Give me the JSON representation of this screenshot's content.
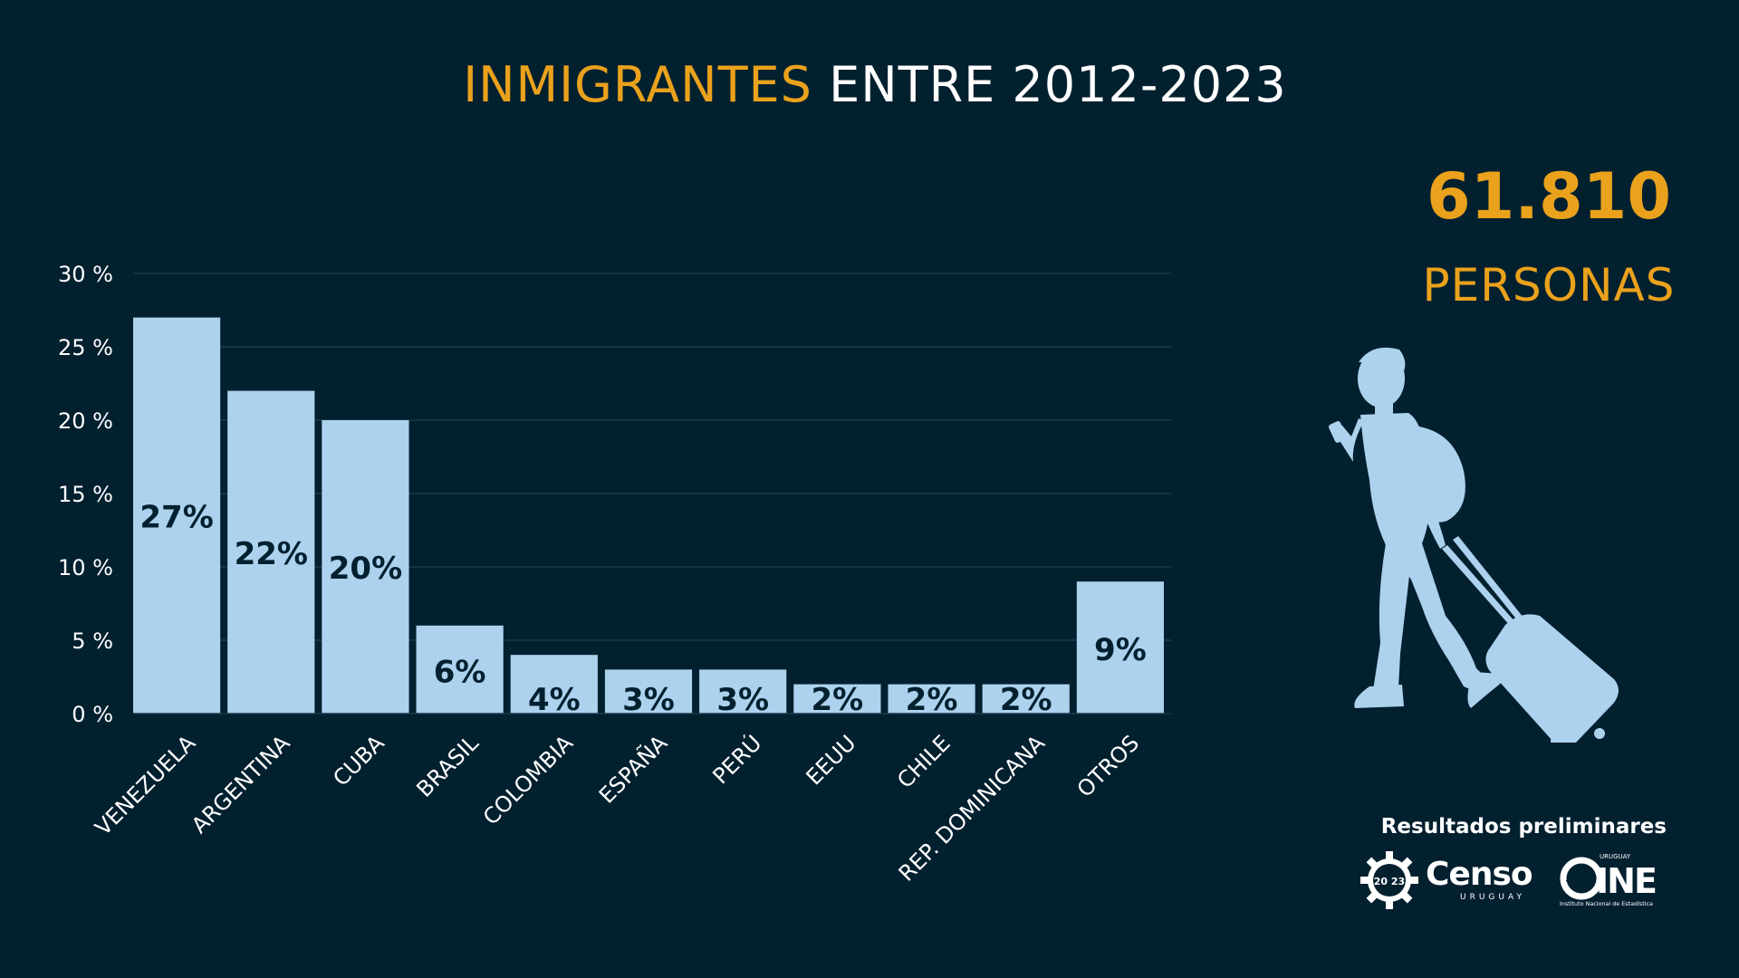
{
  "title": {
    "highlight": "INMIGRANTES",
    "rest": " ENTRE 2012-2023"
  },
  "total": {
    "number": "61.810",
    "unit": "PERSONAS"
  },
  "footer": {
    "label": "Resultados preliminares",
    "censo_badge": "20 23",
    "censo_word": "Censo",
    "censo_sub": "URUGUAY",
    "ine_top": "URUGUAY",
    "ine_word": "INE",
    "ine_sub": "Instituto Nacional de Estadística"
  },
  "colors": {
    "background": "#03202f",
    "accent": "#eaa21c",
    "bar": "#acd2ee",
    "grid": "#1b3a4c",
    "text": "#ffffff",
    "bar_label": "#03202f"
  },
  "icons": [
    "traveler-silhouette-icon",
    "censo-gear-icon",
    "ine-globe-icon"
  ],
  "chart_data": {
    "type": "bar",
    "categories": [
      "VENEZUELA",
      "ARGENTINA",
      "CUBA",
      "BRASIL",
      "COLOMBIA",
      "ESPAÑA",
      "PERÚ",
      "EEUU",
      "CHILE",
      "REP. DOMINICANA",
      "OTROS"
    ],
    "values": [
      27,
      22,
      20,
      6,
      4,
      3,
      3,
      2,
      2,
      2,
      9
    ],
    "data_labels": [
      "27%",
      "22%",
      "20%",
      "6%",
      "4%",
      "3%",
      "3%",
      "2%",
      "2%",
      "2%",
      "9%"
    ],
    "yticks": [
      0,
      5,
      10,
      15,
      20,
      25,
      30
    ],
    "ytick_labels": [
      "0 %",
      "5 %",
      "10 %",
      "15 %",
      "20 %",
      "25 %",
      "30 %"
    ],
    "ylim": [
      0,
      30
    ],
    "title": "INMIGRANTES ENTRE 2012-2023",
    "xlabel": "",
    "ylabel": "",
    "grid": true
  }
}
